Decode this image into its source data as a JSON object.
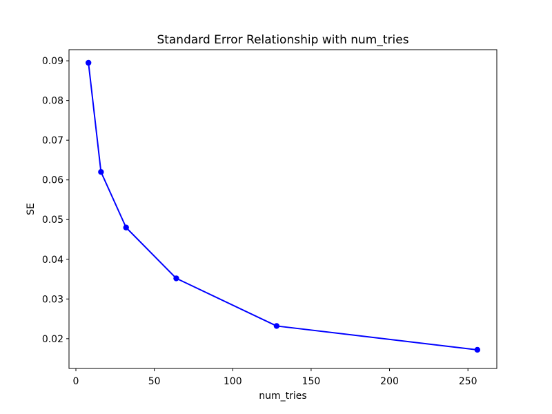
{
  "figure": {
    "background": "#ffffff"
  },
  "chart_data": {
    "type": "line",
    "title": "Standard Error Relationship with num_tries",
    "xlabel": "num_tries",
    "ylabel": "SE",
    "x": [
      8,
      16,
      32,
      64,
      128,
      256
    ],
    "y": [
      0.0895,
      0.062,
      0.048,
      0.0352,
      0.0232,
      0.0172
    ],
    "series": [
      {
        "name": "SE",
        "x": [
          8,
          16,
          32,
          64,
          128,
          256
        ],
        "values": [
          0.0895,
          0.062,
          0.048,
          0.0352,
          0.0232,
          0.0172
        ]
      }
    ],
    "xlim": [
      -4.4,
      268.4
    ],
    "ylim": [
      0.0125,
      0.0928
    ],
    "xticks": [
      0,
      50,
      100,
      150,
      200,
      250
    ],
    "yticks": [
      0.02,
      0.03,
      0.04,
      0.05,
      0.06,
      0.07,
      0.08,
      0.09
    ],
    "ytick_decimals": 2,
    "grid": false,
    "legend": null,
    "line_color": "#0000ff",
    "marker": "o",
    "marker_color": "#0000ff",
    "spine_color": "#000000",
    "tick_color": "#000000"
  }
}
